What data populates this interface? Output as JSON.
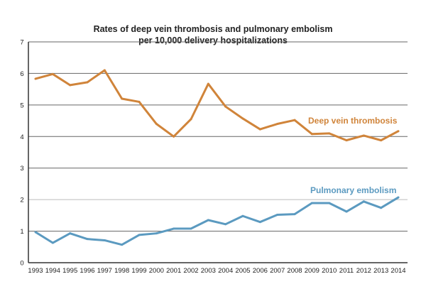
{
  "chart_data": {
    "type": "line",
    "title": [
      "Rates of deep vein thrombosis and pulmonary embolism",
      "per 10,000 delivery hospitalizations"
    ],
    "xlabel": "",
    "ylabel": "",
    "ylim": [
      0,
      7
    ],
    "yticks": [
      "0",
      "1",
      "2",
      "3",
      "4",
      "5",
      "6",
      "7"
    ],
    "grid": true,
    "categories": [
      "1993",
      "1994",
      "1995",
      "1996",
      "1997",
      "1998",
      "1999",
      "2000",
      "2001",
      "2002",
      "2003",
      "2004",
      "2005",
      "2006",
      "2007",
      "2008",
      "2009",
      "2010",
      "2011",
      "2012",
      "2013",
      "2014"
    ],
    "series": [
      {
        "name": "Deep vein thrombosis",
        "color": "#d0843a",
        "values": [
          5.83,
          5.98,
          5.63,
          5.72,
          6.1,
          5.2,
          5.1,
          4.4,
          4.0,
          4.55,
          5.67,
          4.95,
          4.57,
          4.23,
          4.4,
          4.52,
          4.08,
          4.1,
          3.88,
          4.03,
          3.88,
          4.17
        ]
      },
      {
        "name": "Pulmonary embolism",
        "color": "#5b9ac0",
        "values": [
          0.97,
          0.63,
          0.93,
          0.75,
          0.71,
          0.57,
          0.88,
          0.93,
          1.08,
          1.08,
          1.35,
          1.22,
          1.48,
          1.29,
          1.52,
          1.54,
          1.89,
          1.89,
          1.62,
          1.94,
          1.74,
          2.07
        ]
      }
    ]
  }
}
